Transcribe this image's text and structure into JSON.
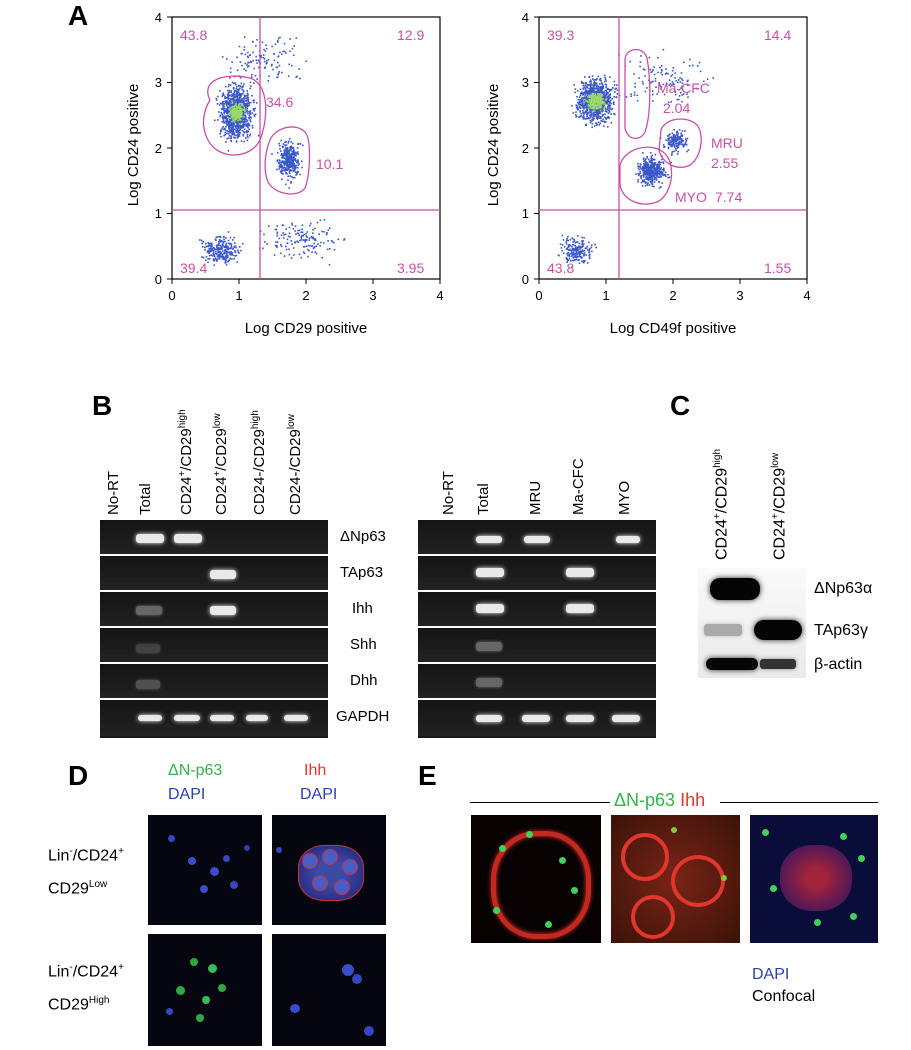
{
  "panels": {
    "A": "A",
    "B": "B",
    "C": "C",
    "D": "D",
    "E": "E"
  },
  "plot1": {
    "xlabel": "Log CD29 positive",
    "ylabel": "Log CD24 positive",
    "xticks": [
      "0",
      "1",
      "2",
      "3",
      "4"
    ],
    "yticks": [
      "0",
      "1",
      "2",
      "3",
      "4"
    ],
    "quadrants": {
      "ul": "43.8",
      "ur": "12.9",
      "ll": "39.4",
      "lr": "3.95"
    },
    "gates": [
      {
        "label": "34.6"
      },
      {
        "label": "10.1"
      }
    ]
  },
  "plot2": {
    "xlabel": "Log CD49f positive",
    "ylabel": "Log CD24 positive",
    "xticks": [
      "0",
      "1",
      "2",
      "3",
      "4"
    ],
    "yticks": [
      "0",
      "1",
      "2",
      "3",
      "4"
    ],
    "quadrants": {
      "ul": "39.3",
      "ur": "14.4",
      "ll": "43.8",
      "lr": "1.55"
    },
    "gates": [
      {
        "name": "Ma-CFC",
        "value": "2.04"
      },
      {
        "name": "MRU",
        "value": "2.55"
      },
      {
        "name": "MYO",
        "value": "7.74"
      }
    ]
  },
  "gel_left": {
    "lanes": [
      {
        "main": "No-RT"
      },
      {
        "main": "Total"
      },
      {
        "main": "CD24",
        "s1": "+",
        "mid": "/CD29",
        "s2": "high"
      },
      {
        "main": "CD24",
        "s1": "+",
        "mid": "/CD29",
        "s2": "low"
      },
      {
        "main": "CD24-/CD29",
        "s1": "",
        "mid": "",
        "s2": "high"
      },
      {
        "main": "CD24-/CD29",
        "s1": "",
        "mid": "",
        "s2": "low"
      }
    ]
  },
  "genes": [
    "ΔNp63",
    "TAp63",
    "Ihh",
    "Shh",
    "Dhh",
    "GAPDH"
  ],
  "gel_right": {
    "lanes": [
      "No-RT",
      "Total",
      "MRU",
      "Ma-CFC",
      "MYO"
    ]
  },
  "western": {
    "lanes": [
      {
        "main": "CD24",
        "s1": "+",
        "mid": "/CD29",
        "s2": "high"
      },
      {
        "main": "CD24",
        "s1": "+",
        "mid": "/CD29",
        "s2": "low"
      }
    ],
    "proteins": [
      "ΔNp63α",
      "TAp63γ",
      "β-actin"
    ]
  },
  "panelD": {
    "col1_top": "ΔN-p63",
    "col1_bottom": "DAPI",
    "col2_top": "Ihh",
    "col2_bottom": "DAPI",
    "row1_line1_a": "Lin",
    "row1_line1_sup": "-",
    "row1_line1_b": "/CD24",
    "row1_line1_sup2": "+",
    "row1_line2_a": "CD29",
    "row1_line2_sup": "Low",
    "row2_line1_a": "Lin",
    "row2_line1_sup": "-",
    "row2_line1_b": "/CD24",
    "row2_line1_sup2": "+",
    "row2_line2_a": "CD29",
    "row2_line2_sup": "High"
  },
  "panelE": {
    "title_green": "ΔN-p63",
    "title_red": "Ihh",
    "legend_dapi": "DAPI",
    "legend_confocal": "Confocal"
  },
  "colors": {
    "quad_text": "#c94fa8",
    "dots": "#3a56c8",
    "green": "#33b44a",
    "red": "#e2352b",
    "blue": "#2c3fb5"
  }
}
